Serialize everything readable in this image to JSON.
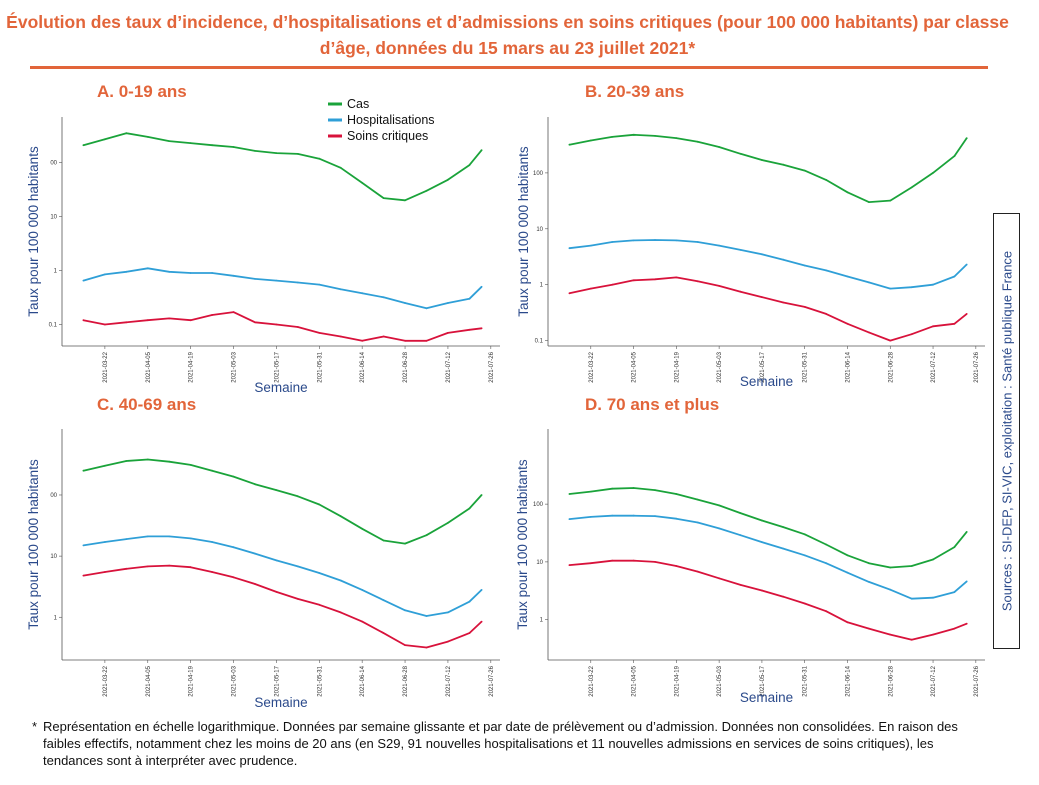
{
  "title": "Évolution des taux d’incidence, d’hospitalisations et d’admissions en soins critiques (pour 100 000 habitants) par classe d’âge, données du 15 mars au 23 juillet 2021*",
  "source": "Sources : SI-DEP, SI-VIC, exploitation : Santé publique France",
  "footnote": {
    "marker": "*",
    "text": "Représentation en échelle logarithmique. Données par semaine glissante et par date de prélèvement ou d’admission. Données non consolidées. En raison des faibles effectifs, notamment chez les moins de 20 ans (en S29, 91 nouvelles hospitalisations et 11 nouvelles admissions en services de soins critiques), les tendances sont à interpréter avec prudence."
  },
  "legend": [
    {
      "name": "Cas",
      "color": "#1aa33a"
    },
    {
      "name": "Hospitalisations",
      "color": "#2f9fd7"
    },
    {
      "name": "Soins critiques",
      "color": "#d8123b"
    }
  ],
  "chart_data": [
    {
      "type": "line",
      "title": "A. 0-19 ans",
      "xlabel": "Semaine",
      "ylabel": "Taux pour 100 000 habitants",
      "yscale": "log",
      "ylim": [
        0.04,
        700
      ],
      "yticks": [
        "0.1",
        "1",
        "10",
        "00"
      ],
      "xticks": [
        "2021-03-22",
        "2021-04-05",
        "2021-04-19",
        "2021-05-03",
        "2021-05-17",
        "2021-05-31",
        "2021-06-14",
        "2021-06-28",
        "2021-07-12",
        "2021-07-26"
      ],
      "x": [
        "2021-03-15",
        "2021-03-22",
        "2021-03-29",
        "2021-04-05",
        "2021-04-12",
        "2021-04-19",
        "2021-04-26",
        "2021-05-03",
        "2021-05-10",
        "2021-05-17",
        "2021-05-24",
        "2021-05-31",
        "2021-06-07",
        "2021-06-14",
        "2021-06-21",
        "2021-06-28",
        "2021-07-05",
        "2021-07-12",
        "2021-07-19",
        "2021-07-23"
      ],
      "series": [
        {
          "name": "Cas",
          "values": [
            210,
            270,
            350,
            300,
            250,
            230,
            210,
            195,
            165,
            150,
            145,
            118,
            80,
            42,
            22,
            20,
            30,
            48,
            90,
            170
          ]
        },
        {
          "name": "Hospitalisations",
          "values": [
            0.65,
            0.85,
            0.95,
            1.1,
            0.95,
            0.9,
            0.9,
            0.8,
            0.7,
            0.65,
            0.6,
            0.55,
            0.45,
            0.38,
            0.32,
            0.25,
            0.2,
            0.25,
            0.3,
            0.5
          ]
        },
        {
          "name": "Soins critiques",
          "values": [
            0.12,
            0.1,
            0.11,
            0.12,
            0.13,
            0.12,
            0.15,
            0.17,
            0.11,
            0.1,
            0.09,
            0.07,
            0.06,
            0.05,
            0.06,
            0.05,
            0.05,
            0.07,
            0.08,
            0.085
          ]
        }
      ]
    },
    {
      "type": "line",
      "title": "B. 20-39 ans",
      "xlabel": "Semaine",
      "ylabel": "Taux pour 100 000 habitants",
      "yscale": "log",
      "ylim": [
        0.08,
        1000
      ],
      "yticks": [
        "0.1",
        "1",
        "10",
        "100"
      ],
      "xticks": [
        "2021-03-22",
        "2021-04-05",
        "2021-04-19",
        "2021-05-03",
        "2021-05-17",
        "2021-05-31",
        "2021-06-14",
        "2021-06-28",
        "2021-07-12",
        "2021-07-26"
      ],
      "x": [
        "2021-03-15",
        "2021-03-22",
        "2021-03-29",
        "2021-04-05",
        "2021-04-12",
        "2021-04-19",
        "2021-04-26",
        "2021-05-03",
        "2021-05-10",
        "2021-05-17",
        "2021-05-24",
        "2021-05-31",
        "2021-06-07",
        "2021-06-14",
        "2021-06-21",
        "2021-06-28",
        "2021-07-05",
        "2021-07-12",
        "2021-07-19",
        "2021-07-23"
      ],
      "series": [
        {
          "name": "Cas",
          "values": [
            320,
            380,
            440,
            480,
            460,
            420,
            360,
            290,
            220,
            170,
            140,
            110,
            75,
            45,
            30,
            32,
            55,
            100,
            200,
            420
          ]
        },
        {
          "name": "Hospitalisations",
          "values": [
            4.5,
            5.0,
            5.8,
            6.2,
            6.3,
            6.2,
            5.8,
            5.0,
            4.2,
            3.5,
            2.8,
            2.2,
            1.8,
            1.4,
            1.1,
            0.85,
            0.9,
            1.0,
            1.4,
            2.3
          ]
        },
        {
          "name": "Soins critiques",
          "values": [
            0.7,
            0.85,
            1.0,
            1.2,
            1.25,
            1.35,
            1.15,
            0.95,
            0.75,
            0.6,
            0.48,
            0.4,
            0.3,
            0.2,
            0.14,
            0.1,
            0.13,
            0.18,
            0.2,
            0.3
          ]
        }
      ]
    },
    {
      "type": "line",
      "title": "C. 40-69 ans",
      "xlabel": "Semaine",
      "ylabel": "Taux pour 100 000 habitants",
      "yscale": "log",
      "ylim": [
        0.2,
        1200
      ],
      "yticks": [
        "1",
        "10",
        "00"
      ],
      "xticks": [
        "2021-03-22",
        "2021-04-05",
        "2021-04-19",
        "2021-05-03",
        "2021-05-17",
        "2021-05-31",
        "2021-06-14",
        "2021-06-28",
        "2021-07-12",
        "2021-07-26"
      ],
      "x": [
        "2021-03-15",
        "2021-03-22",
        "2021-03-29",
        "2021-04-05",
        "2021-04-12",
        "2021-04-19",
        "2021-04-26",
        "2021-05-03",
        "2021-05-10",
        "2021-05-17",
        "2021-05-24",
        "2021-05-31",
        "2021-06-07",
        "2021-06-14",
        "2021-06-21",
        "2021-06-28",
        "2021-07-05",
        "2021-07-12",
        "2021-07-19",
        "2021-07-23"
      ],
      "series": [
        {
          "name": "Cas",
          "values": [
            250,
            300,
            360,
            380,
            350,
            310,
            250,
            200,
            150,
            120,
            95,
            70,
            45,
            28,
            18,
            16,
            22,
            35,
            60,
            100
          ]
        },
        {
          "name": "Hospitalisations",
          "values": [
            15,
            17,
            19,
            21,
            21,
            19.5,
            17,
            14,
            11,
            8.5,
            6.8,
            5.3,
            4,
            2.8,
            1.9,
            1.3,
            1.05,
            1.2,
            1.8,
            2.8
          ]
        },
        {
          "name": "Soins critiques",
          "values": [
            4.8,
            5.5,
            6.2,
            6.8,
            7.0,
            6.6,
            5.5,
            4.5,
            3.5,
            2.6,
            2.0,
            1.6,
            1.2,
            0.85,
            0.55,
            0.35,
            0.32,
            0.4,
            0.55,
            0.85
          ]
        }
      ]
    },
    {
      "type": "line",
      "title": "D. 70 ans et plus",
      "xlabel": "Semaine",
      "ylabel": "Taux pour 100 000 habitants",
      "yscale": "log",
      "ylim": [
        0.2,
        2000
      ],
      "yticks": [
        "1",
        "10",
        "100"
      ],
      "xticks": [
        "2021-03-22",
        "2021-04-05",
        "2021-04-19",
        "2021-05-03",
        "2021-05-17",
        "2021-05-31",
        "2021-06-14",
        "2021-06-28",
        "2021-07-12",
        "2021-07-26"
      ],
      "x": [
        "2021-03-15",
        "2021-03-22",
        "2021-03-29",
        "2021-04-05",
        "2021-04-12",
        "2021-04-19",
        "2021-04-26",
        "2021-05-03",
        "2021-05-10",
        "2021-05-17",
        "2021-05-24",
        "2021-05-31",
        "2021-06-07",
        "2021-06-14",
        "2021-06-21",
        "2021-06-28",
        "2021-07-05",
        "2021-07-12",
        "2021-07-19",
        "2021-07-23"
      ],
      "series": [
        {
          "name": "Cas",
          "values": [
            150,
            165,
            185,
            190,
            175,
            150,
            120,
            95,
            70,
            52,
            40,
            30,
            20,
            13,
            9.5,
            8,
            8.5,
            11,
            18,
            33
          ]
        },
        {
          "name": "Hospitalisations",
          "values": [
            55,
            60,
            63,
            63,
            62,
            56,
            48,
            38,
            29,
            22,
            17,
            13,
            9.5,
            6.5,
            4.5,
            3.3,
            2.3,
            2.4,
            3.0,
            4.6
          ]
        },
        {
          "name": "Soins critiques",
          "values": [
            8.8,
            9.5,
            10.5,
            10.5,
            10,
            8.5,
            6.8,
            5.2,
            4.0,
            3.2,
            2.5,
            1.9,
            1.4,
            0.9,
            0.7,
            0.55,
            0.45,
            0.55,
            0.7,
            0.85
          ]
        }
      ]
    }
  ]
}
